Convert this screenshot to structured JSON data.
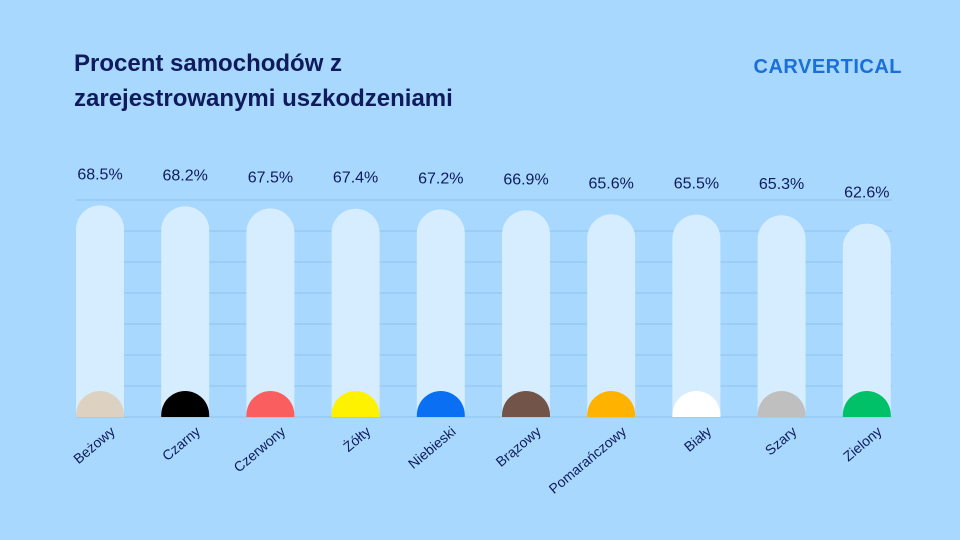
{
  "header": {
    "title_line1": "Procent samochodów z",
    "title_line2": "zarejestrowanymi uszkodzeniami",
    "logo": "carVertical"
  },
  "chart_data": {
    "type": "bar",
    "title": "Procent samochodów z zarejestrowanymi uszkodzeniami",
    "xlabel": "",
    "ylabel": "",
    "unit": "%",
    "categories": [
      "Beżowy",
      "Czarny",
      "Czerwony",
      "Żółty",
      "Niebieski",
      "Brązowy",
      "Pomarańczowy",
      "Biały",
      "Szary",
      "Zielony"
    ],
    "values": [
      68.5,
      68.2,
      67.5,
      67.4,
      67.2,
      66.9,
      65.6,
      65.5,
      65.3,
      62.6
    ],
    "value_labels": [
      "68.5%",
      "68.2%",
      "67.5%",
      "67.4%",
      "67.2%",
      "66.9%",
      "65.6%",
      "65.5%",
      "65.3%",
      "62.6%"
    ],
    "colors": [
      "#ddd2c2",
      "#000000",
      "#fb5e5e",
      "#fff200",
      "#0a6ff2",
      "#735448",
      "#ffb200",
      "#ffffff",
      "#bfbfbf",
      "#00c168"
    ],
    "grid": true
  },
  "style": {
    "background": "#a8d8fd",
    "bar_track": "#d6edff",
    "gridline": "#8fc2ef",
    "text": "#0f1b5c",
    "brand": "#1a6fd8"
  }
}
